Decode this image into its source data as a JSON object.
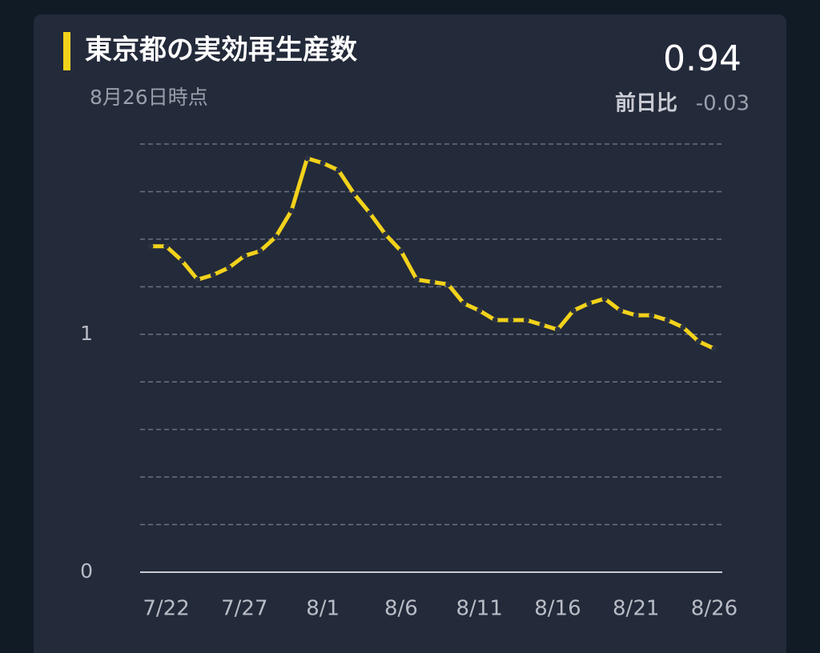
{
  "chart_data": {
    "type": "line",
    "title": "東京都の実効再生産数",
    "subtitle": "8月26日時点",
    "latest": 0.94,
    "change_label": "前日比",
    "change": -0.03,
    "categories": [
      null,
      "7/22",
      null,
      null,
      null,
      null,
      "7/27",
      null,
      null,
      null,
      null,
      "8/1",
      null,
      null,
      null,
      null,
      "8/6",
      null,
      null,
      null,
      null,
      "8/11",
      null,
      null,
      null,
      null,
      "8/16",
      null,
      null,
      null,
      null,
      "8/21",
      null,
      null,
      null,
      null,
      "8/26"
    ],
    "values": [
      1.37,
      1.37,
      1.31,
      1.23,
      1.25,
      1.28,
      1.33,
      1.35,
      1.41,
      1.52,
      1.74,
      1.72,
      1.69,
      1.59,
      1.51,
      1.42,
      1.35,
      1.23,
      1.22,
      1.21,
      1.13,
      1.1,
      1.06,
      1.06,
      1.06,
      1.04,
      1.02,
      1.1,
      1.13,
      1.15,
      1.1,
      1.08,
      1.08,
      1.06,
      1.03,
      0.97,
      0.94
    ],
    "color": "#f2d21b",
    "ylim": [
      0,
      1.8
    ],
    "yticks": [
      0,
      1
    ],
    "grid_lines": [
      0.2,
      0.4,
      0.6,
      0.8,
      1,
      1.2,
      1.4,
      1.6,
      1.8
    ]
  }
}
